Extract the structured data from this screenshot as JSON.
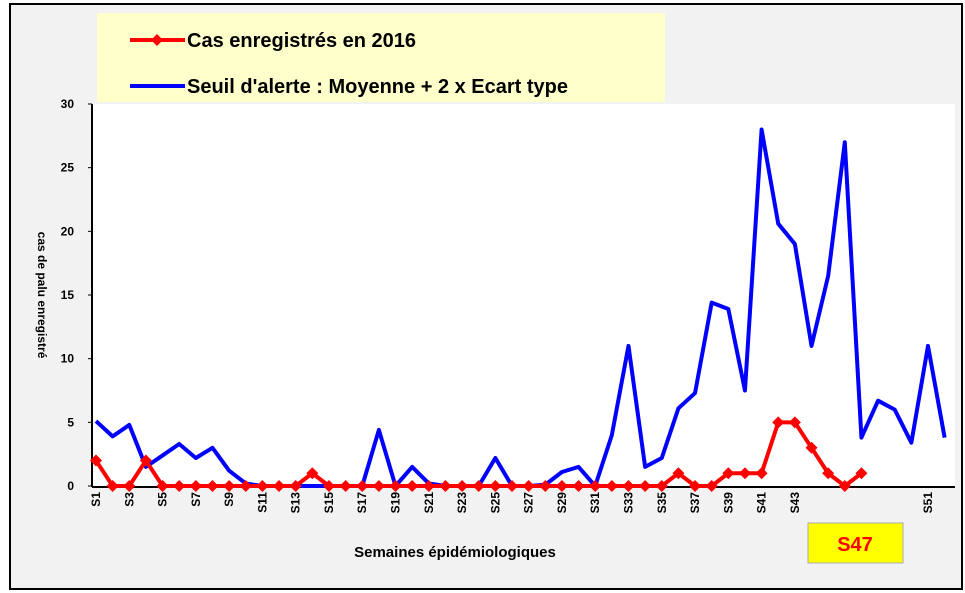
{
  "chart_data": {
    "type": "line",
    "x_label": "Semaines épidémiologiques",
    "y_label": "cas de palu enregistré",
    "annotation": "S47",
    "categories": [
      "S1",
      null,
      "S3",
      null,
      "S5",
      null,
      "S7",
      null,
      "S9",
      null,
      "S11",
      null,
      "S13",
      null,
      "S15",
      null,
      "S17",
      null,
      "S19",
      null,
      "S21",
      null,
      "S23",
      null,
      "S25",
      null,
      "S27",
      null,
      "S29",
      null,
      "S31",
      null,
      "S33",
      null,
      "S35",
      null,
      "S37",
      null,
      "S39",
      null,
      "S41",
      null,
      "S43",
      null,
      null,
      null,
      null,
      null,
      null,
      null,
      "S51",
      null
    ],
    "series": [
      {
        "name": "Cas enregistrés en 2016",
        "color": "#ff0000",
        "marker": "diamond",
        "values": [
          2,
          0,
          0,
          2,
          0,
          0,
          0,
          0,
          0,
          0,
          0,
          0,
          0,
          1,
          0,
          0,
          0,
          0,
          0,
          0,
          0,
          0,
          0,
          0,
          0,
          0,
          0,
          0,
          0,
          0,
          0,
          0,
          0,
          0,
          0,
          1,
          0,
          0,
          1,
          1,
          1,
          5,
          5,
          3,
          1,
          0,
          1,
          null,
          null,
          null,
          null,
          null
        ]
      },
      {
        "name": "Seuil d'alerte : Moyenne + 2 x Ecart type",
        "color": "#0000ff",
        "values": [
          5.1,
          3.9,
          4.8,
          1.5,
          2.4,
          3.3,
          2.2,
          3.0,
          1.2,
          0.2,
          0,
          0,
          0,
          0,
          0,
          0,
          0,
          4.4,
          0,
          1.5,
          0.2,
          0,
          0,
          0,
          2.2,
          0,
          0,
          0.1,
          1.1,
          1.5,
          0,
          4.0,
          11,
          1.5,
          2.2,
          6.1,
          7.3,
          14.4,
          13.9,
          7.5,
          28,
          20.6,
          19,
          11,
          16.5,
          27,
          3.8,
          6.7,
          6.0,
          3.4,
          11,
          3.8
        ]
      }
    ],
    "ylim": [
      0,
      30
    ],
    "yticks": [
      0,
      5,
      10,
      15,
      20,
      25,
      30
    ]
  }
}
